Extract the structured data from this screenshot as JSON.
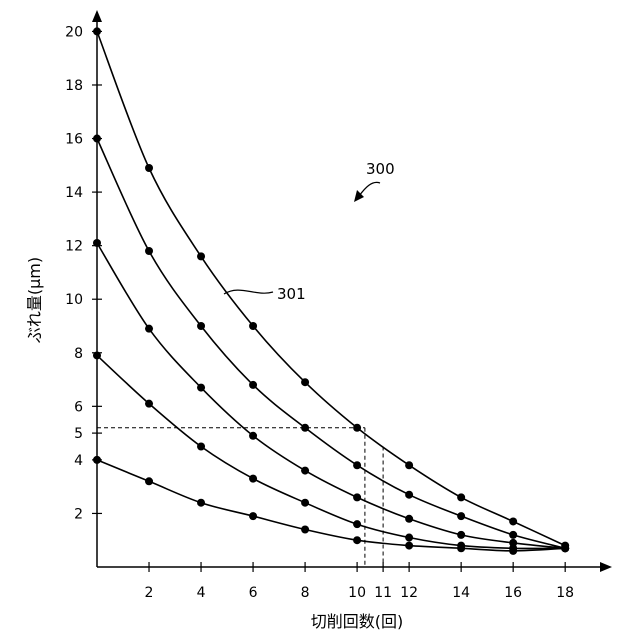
{
  "chart_data": {
    "type": "line",
    "title": "",
    "xlabel": "切削回数(回)",
    "ylabel": "ぶれ量(μm)",
    "xlim": [
      0,
      19.8
    ],
    "ylim": [
      0,
      20.8
    ],
    "x_ticks": [
      2,
      4,
      6,
      8,
      10,
      11,
      12,
      14,
      16,
      18
    ],
    "y_ticks": [
      2,
      4,
      5,
      6,
      8,
      10,
      12,
      14,
      16,
      18,
      20
    ],
    "grid": false,
    "legend": "none",
    "series": [
      {
        "points": [
          [
            0,
            20
          ],
          [
            2,
            14.9
          ],
          [
            4,
            11.6
          ],
          [
            6,
            9.0
          ],
          [
            8,
            6.9
          ],
          [
            10,
            5.2
          ],
          [
            12,
            3.8
          ],
          [
            14,
            2.6
          ],
          [
            16,
            1.7
          ],
          [
            18,
            0.8
          ]
        ]
      },
      {
        "points": [
          [
            0,
            16
          ],
          [
            2,
            11.8
          ],
          [
            4,
            9.0
          ],
          [
            6,
            6.8
          ],
          [
            8,
            5.2
          ],
          [
            10,
            3.8
          ],
          [
            12,
            2.7
          ],
          [
            14,
            1.9
          ],
          [
            16,
            1.2
          ],
          [
            18,
            0.7
          ]
        ]
      },
      {
        "points": [
          [
            0,
            12.1
          ],
          [
            2,
            8.9
          ],
          [
            4,
            6.7
          ],
          [
            6,
            4.9
          ],
          [
            8,
            3.6
          ],
          [
            10,
            2.6
          ],
          [
            12,
            1.8
          ],
          [
            14,
            1.2
          ],
          [
            16,
            0.9
          ],
          [
            18,
            0.7
          ]
        ]
      },
      {
        "points": [
          [
            0,
            7.9
          ],
          [
            2,
            6.1
          ],
          [
            4,
            4.5
          ],
          [
            6,
            3.3
          ],
          [
            8,
            2.4
          ],
          [
            10,
            1.6
          ],
          [
            12,
            1.1
          ],
          [
            14,
            0.8
          ],
          [
            16,
            0.7
          ],
          [
            18,
            0.7
          ]
        ]
      },
      {
        "points": [
          [
            0,
            4.0
          ],
          [
            2,
            3.2
          ],
          [
            4,
            2.4
          ],
          [
            6,
            1.9
          ],
          [
            8,
            1.4
          ],
          [
            10,
            1.0
          ],
          [
            12,
            0.8
          ],
          [
            14,
            0.7
          ],
          [
            16,
            0.6
          ],
          [
            18,
            0.7
          ]
        ]
      }
    ],
    "reference_lines": [
      {
        "from": [
          0,
          5.2
        ],
        "to": [
          10.3,
          5.2
        ]
      },
      {
        "from": [
          10.3,
          5.2
        ],
        "to": [
          10.3,
          0
        ]
      },
      {
        "from": [
          11,
          4.5
        ],
        "to": [
          11,
          0
        ]
      }
    ],
    "annotations": [
      {
        "text": "300",
        "target": "figure"
      },
      {
        "text": "301",
        "target": "series-0"
      }
    ],
    "colors": {
      "line": "#000000",
      "marker": "#000000"
    }
  }
}
